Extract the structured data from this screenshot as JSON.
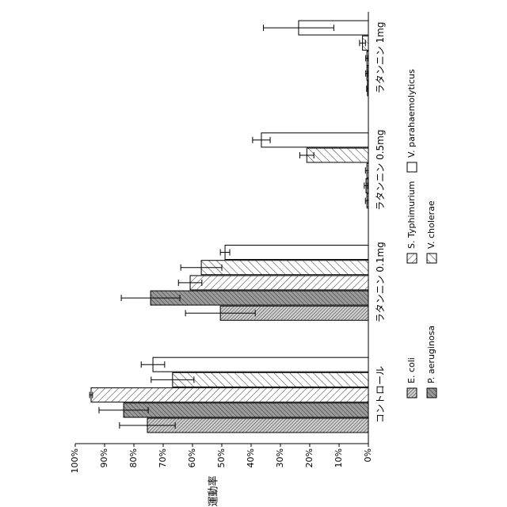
{
  "chart_data": {
    "type": "bar",
    "orientation": "rotated",
    "ylabel": "運動率",
    "categories": [
      "コントロール",
      "ラタンニン 0.1mg",
      "ラタンニン 0.5mg",
      "ラタンニン 1mg"
    ],
    "series": [
      {
        "name": "E. coli",
        "color": "#cfcfcf",
        "pattern": "diagonal",
        "values": [
          75.4,
          50.5,
          0.5,
          0.3
        ],
        "errors": [
          9.5,
          11.9,
          0.5,
          0.3
        ]
      },
      {
        "name": "P. aeruginosa",
        "color": "#9a9a9a",
        "pattern": "diagonal",
        "values": [
          83.5,
          74.3,
          0.8,
          0.5
        ],
        "errors": [
          8.4,
          10,
          0.6,
          0.4
        ]
      },
      {
        "name": "S. Typhimurium",
        "color": "#ffffff",
        "pattern": "diagonal",
        "values": [
          94.6,
          60.8,
          0.5,
          0.5
        ],
        "errors": [
          0.5,
          4,
          0.5,
          0.4
        ]
      },
      {
        "name": "V. cholerae",
        "color": "#ffffff",
        "pattern": "diagonal",
        "values": [
          66.8,
          57,
          21,
          2
        ],
        "errors": [
          7.3,
          7,
          2.4,
          1
        ]
      },
      {
        "name": "V. parahaemolyticus",
        "color": "#ffffff",
        "pattern": "none",
        "values": [
          73.5,
          48.9,
          36.5,
          23.8
        ],
        "errors": [
          4,
          1.6,
          3,
          12
        ]
      }
    ],
    "ylim": [
      0,
      100
    ],
    "yticks": [
      {
        "value": 0,
        "label": "0%"
      },
      {
        "value": 10,
        "label": "10%"
      },
      {
        "value": 20,
        "label": "20%"
      },
      {
        "value": 30,
        "label": "30%"
      },
      {
        "value": 40,
        "label": "40%"
      },
      {
        "value": 50,
        "label": "50%"
      },
      {
        "value": 60,
        "label": "60%"
      },
      {
        "value": 70,
        "label": "70%"
      },
      {
        "value": 80,
        "label": "80%"
      },
      {
        "value": 90,
        "label": "90%"
      },
      {
        "value": 100,
        "label": "100%"
      }
    ]
  }
}
